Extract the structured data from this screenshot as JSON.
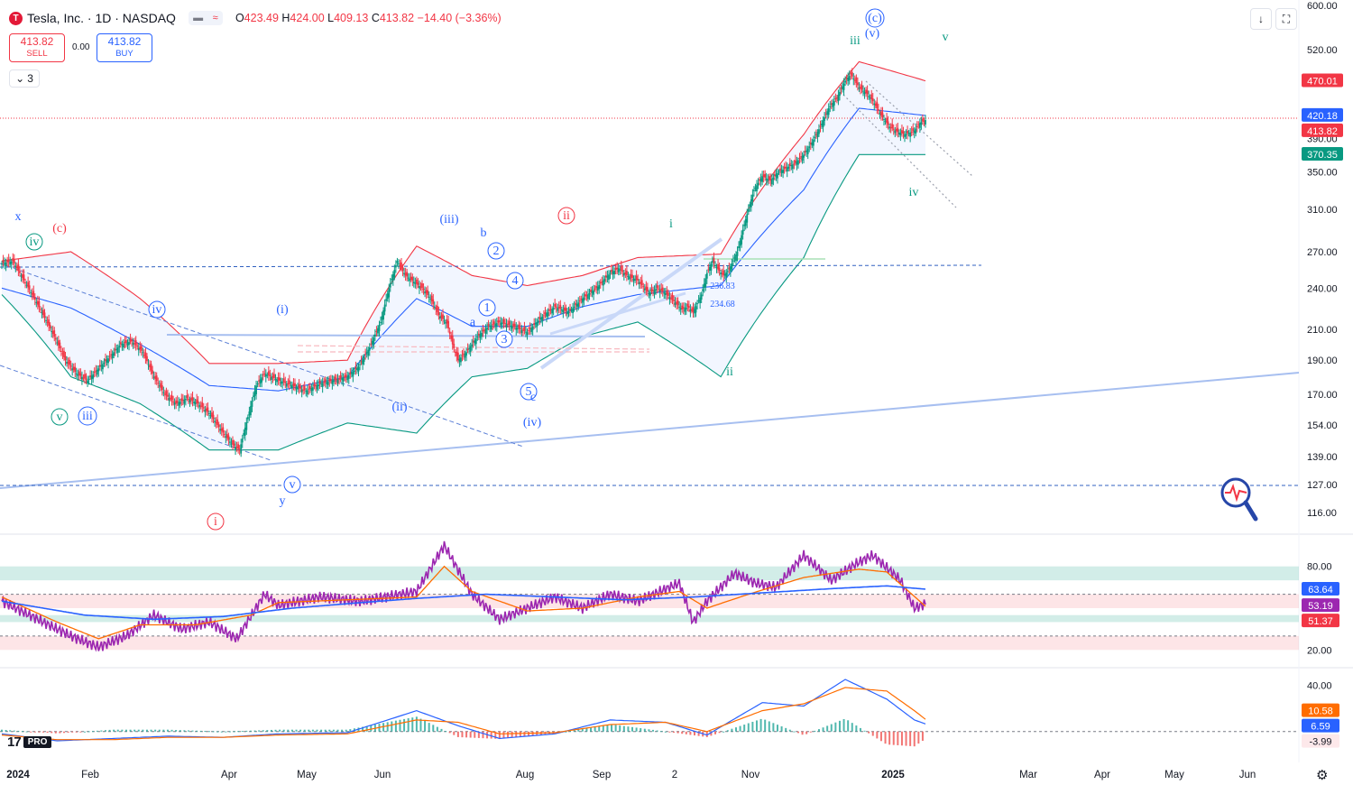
{
  "header": {
    "logo_glyph": "T",
    "symbol": "Tesla, Inc. · 1D · NASDAQ",
    "chip_a": "▬",
    "chip_b": "≈",
    "o_label": "O",
    "o_value": "423.49",
    "h_label": "H",
    "h_value": "424.00",
    "l_label": "L",
    "l_value": "409.13",
    "c_label": "C",
    "c_value": "413.82",
    "change": "−14.40 (−3.36%)"
  },
  "trade": {
    "sell_price": "413.82",
    "sell_label": "SELL",
    "spread": "0.00",
    "buy_price": "413.82",
    "buy_label": "BUY"
  },
  "indicators_toggle": {
    "icon": "chevron-down-icon",
    "count": "3"
  },
  "toolbar": {
    "download_icon": "↓",
    "fullscreen_icon": "⛶"
  },
  "branding": {
    "mark": "17",
    "pro": "PRO"
  },
  "settings_icon": "⚙",
  "colors": {
    "up": "#089981",
    "down": "#f23645",
    "accent": "#2962ff",
    "bb_upper": "#f23645",
    "bb_mid": "#2962ff",
    "bb_lower": "#089981",
    "rsi": "#9c27b0",
    "macd": "#2962ff",
    "signal": "#ff6d00"
  },
  "chart_data": {
    "type": "candlestick",
    "title": "Tesla, Inc. · 1D · NASDAQ",
    "price_axis_ticks": [
      "600.00",
      "520.00",
      "390.00",
      "350.00",
      "310.00",
      "270.00",
      "240.00",
      "210.00",
      "190.00",
      "170.00",
      "154.00",
      "139.00",
      "127.00",
      "116.00"
    ],
    "price_scale": "log",
    "time_axis_labels": [
      "2024",
      "Feb",
      "Apr",
      "May",
      "Jun",
      "Aug",
      "Sep",
      "2",
      "Nov",
      "2025",
      "Mar",
      "Apr",
      "May",
      "Jun"
    ],
    "price_path": [
      [
        0,
        260
      ],
      [
        8,
        262
      ],
      [
        14,
        250
      ],
      [
        22,
        235
      ],
      [
        30,
        220
      ],
      [
        38,
        205
      ],
      [
        46,
        190
      ],
      [
        54,
        182
      ],
      [
        62,
        178
      ],
      [
        70,
        185
      ],
      [
        78,
        192
      ],
      [
        86,
        200
      ],
      [
        94,
        202
      ],
      [
        102,
        195
      ],
      [
        110,
        180
      ],
      [
        118,
        170
      ],
      [
        126,
        165
      ],
      [
        134,
        168
      ],
      [
        142,
        165
      ],
      [
        150,
        160
      ],
      [
        158,
        152
      ],
      [
        166,
        145
      ],
      [
        172,
        142
      ],
      [
        178,
        158
      ],
      [
        184,
        175
      ],
      [
        190,
        182
      ],
      [
        200,
        178
      ],
      [
        210,
        175
      ],
      [
        220,
        172
      ],
      [
        230,
        176
      ],
      [
        240,
        178
      ],
      [
        250,
        180
      ],
      [
        258,
        186
      ],
      [
        266,
        198
      ],
      [
        274,
        215
      ],
      [
        280,
        240
      ],
      [
        286,
        262
      ],
      [
        292,
        250
      ],
      [
        298,
        245
      ],
      [
        304,
        240
      ],
      [
        310,
        232
      ],
      [
        316,
        220
      ],
      [
        322,
        214
      ],
      [
        326,
        200
      ],
      [
        330,
        190
      ],
      [
        336,
        195
      ],
      [
        344,
        205
      ],
      [
        352,
        212
      ],
      [
        360,
        215
      ],
      [
        370,
        212
      ],
      [
        380,
        208
      ],
      [
        390,
        218
      ],
      [
        400,
        226
      ],
      [
        410,
        222
      ],
      [
        420,
        232
      ],
      [
        430,
        240
      ],
      [
        440,
        252
      ],
      [
        446,
        256
      ],
      [
        452,
        250
      ],
      [
        460,
        246
      ],
      [
        468,
        236
      ],
      [
        474,
        240
      ],
      [
        480,
        236
      ],
      [
        486,
        230
      ],
      [
        492,
        224
      ],
      [
        496,
        226
      ],
      [
        500,
        222
      ],
      [
        506,
        235
      ],
      [
        510,
        252
      ],
      [
        514,
        262
      ],
      [
        518,
        255
      ],
      [
        522,
        250
      ],
      [
        526,
        255
      ],
      [
        532,
        270
      ],
      [
        538,
        300
      ],
      [
        544,
        330
      ],
      [
        550,
        345
      ],
      [
        556,
        340
      ],
      [
        562,
        350
      ],
      [
        568,
        355
      ],
      [
        574,
        360
      ],
      [
        580,
        370
      ],
      [
        586,
        385
      ],
      [
        592,
        405
      ],
      [
        598,
        430
      ],
      [
        604,
        445
      ],
      [
        610,
        470
      ],
      [
        614,
        480
      ],
      [
        620,
        460
      ],
      [
        626,
        450
      ],
      [
        630,
        440
      ],
      [
        636,
        420
      ],
      [
        642,
        405
      ],
      [
        648,
        398
      ],
      [
        654,
        395
      ],
      [
        660,
        400
      ],
      [
        664,
        410
      ],
      [
        668,
        413.82
      ]
    ],
    "bollinger": {
      "upper": [
        [
          0,
          262
        ],
        [
          50,
          270
        ],
        [
          100,
          232
        ],
        [
          150,
          188
        ],
        [
          200,
          188
        ],
        [
          250,
          190
        ],
        [
          300,
          275
        ],
        [
          340,
          250
        ],
        [
          380,
          242
        ],
        [
          420,
          250
        ],
        [
          460,
          265
        ],
        [
          520,
          268
        ],
        [
          580,
          395
        ],
        [
          620,
          500
        ],
        [
          668,
          470
        ]
      ],
      "mid": [
        [
          0,
          240
        ],
        [
          50,
          225
        ],
        [
          100,
          200
        ],
        [
          150,
          175
        ],
        [
          200,
          172
        ],
        [
          250,
          180
        ],
        [
          300,
          232
        ],
        [
          340,
          212
        ],
        [
          380,
          212
        ],
        [
          420,
          226
        ],
        [
          460,
          235
        ],
        [
          520,
          242
        ],
        [
          580,
          330
        ],
        [
          620,
          430
        ],
        [
          668,
          420
        ]
      ],
      "lower": [
        [
          0,
          235
        ],
        [
          50,
          180
        ],
        [
          100,
          165
        ],
        [
          150,
          142
        ],
        [
          200,
          142
        ],
        [
          250,
          155
        ],
        [
          300,
          150
        ],
        [
          340,
          180
        ],
        [
          380,
          185
        ],
        [
          420,
          205
        ],
        [
          460,
          215
        ],
        [
          520,
          180
        ],
        [
          580,
          265
        ],
        [
          620,
          370
        ],
        [
          668,
          370
        ]
      ]
    },
    "rsi": {
      "ticks": [
        "80.00",
        "20.00"
      ],
      "overbought_zone": [
        70,
        80
      ],
      "oversold_zone": [
        20,
        30
      ],
      "rsi_path": [
        [
          0,
          55
        ],
        [
          20,
          45
        ],
        [
          50,
          30
        ],
        [
          70,
          22
        ],
        [
          90,
          30
        ],
        [
          110,
          45
        ],
        [
          130,
          35
        ],
        [
          150,
          40
        ],
        [
          170,
          28
        ],
        [
          190,
          60
        ],
        [
          200,
          52
        ],
        [
          230,
          58
        ],
        [
          260,
          55
        ],
        [
          300,
          62
        ],
        [
          320,
          95
        ],
        [
          340,
          60
        ],
        [
          360,
          42
        ],
        [
          380,
          50
        ],
        [
          400,
          58
        ],
        [
          420,
          50
        ],
        [
          440,
          60
        ],
        [
          460,
          55
        ],
        [
          490,
          68
        ],
        [
          500,
          40
        ],
        [
          510,
          55
        ],
        [
          530,
          75
        ],
        [
          545,
          68
        ],
        [
          560,
          65
        ],
        [
          580,
          88
        ],
        [
          600,
          70
        ],
        [
          618,
          82
        ],
        [
          630,
          88
        ],
        [
          650,
          70
        ],
        [
          660,
          50
        ],
        [
          668,
          53.19
        ]
      ],
      "signal_path": [
        [
          0,
          58
        ],
        [
          40,
          40
        ],
        [
          70,
          28
        ],
        [
          100,
          38
        ],
        [
          140,
          38
        ],
        [
          180,
          45
        ],
        [
          200,
          54
        ],
        [
          250,
          56
        ],
        [
          300,
          58
        ],
        [
          320,
          80
        ],
        [
          340,
          62
        ],
        [
          380,
          48
        ],
        [
          420,
          50
        ],
        [
          460,
          58
        ],
        [
          490,
          62
        ],
        [
          510,
          50
        ],
        [
          540,
          60
        ],
        [
          580,
          72
        ],
        [
          620,
          78
        ],
        [
          640,
          76
        ],
        [
          668,
          51.37
        ]
      ],
      "ma_path": [
        [
          0,
          55
        ],
        [
          60,
          45
        ],
        [
          110,
          42
        ],
        [
          160,
          44
        ],
        [
          210,
          50
        ],
        [
          260,
          54
        ],
        [
          300,
          57
        ],
        [
          350,
          60
        ],
        [
          400,
          58
        ],
        [
          450,
          56
        ],
        [
          500,
          58
        ],
        [
          550,
          61
        ],
        [
          600,
          64
        ],
        [
          640,
          66
        ],
        [
          668,
          63.64
        ]
      ]
    },
    "macd": {
      "ticks": [
        "40.00",
        "-3.99"
      ],
      "macd_path": [
        [
          0,
          -2
        ],
        [
          40,
          -8
        ],
        [
          80,
          -6
        ],
        [
          120,
          -4
        ],
        [
          160,
          -5
        ],
        [
          200,
          -2
        ],
        [
          250,
          -1
        ],
        [
          300,
          18
        ],
        [
          330,
          5
        ],
        [
          360,
          -6
        ],
        [
          400,
          -2
        ],
        [
          440,
          10
        ],
        [
          480,
          8
        ],
        [
          510,
          -3
        ],
        [
          550,
          25
        ],
        [
          580,
          22
        ],
        [
          610,
          45
        ],
        [
          640,
          28
        ],
        [
          660,
          10
        ],
        [
          668,
          6.59
        ]
      ],
      "signal_path": [
        [
          0,
          -3
        ],
        [
          40,
          -7
        ],
        [
          80,
          -7
        ],
        [
          120,
          -5
        ],
        [
          160,
          -5
        ],
        [
          200,
          -3
        ],
        [
          250,
          -2
        ],
        [
          300,
          10
        ],
        [
          330,
          8
        ],
        [
          360,
          -2
        ],
        [
          400,
          -1
        ],
        [
          440,
          6
        ],
        [
          480,
          8
        ],
        [
          510,
          0
        ],
        [
          550,
          18
        ],
        [
          580,
          24
        ],
        [
          610,
          38
        ],
        [
          640,
          35
        ],
        [
          660,
          18
        ],
        [
          668,
          10.58
        ]
      ]
    },
    "price_labels": [
      {
        "text": "470.01",
        "color": "#f23645"
      },
      {
        "text": "420.18",
        "color": "#2962ff"
      },
      {
        "text": "413.82",
        "color": "#f23645"
      },
      {
        "text": "370.35",
        "color": "#089981"
      }
    ],
    "rsi_labels": [
      {
        "text": "63.64",
        "color": "#2962ff"
      },
      {
        "text": "53.19",
        "color": "#9c27b0"
      },
      {
        "text": "51.37",
        "color": "#f23645"
      }
    ],
    "macd_labels": [
      {
        "text": "10.58",
        "color": "#ff6d00"
      },
      {
        "text": "6.59",
        "color": "#2962ff"
      },
      {
        "text": "-3.99",
        "color": "#f23645"
      }
    ],
    "wave_labels": [
      {
        "text": "x",
        "color": "#2962ff",
        "circle": false
      },
      {
        "text": "(c)",
        "color": "#f23645",
        "circle": false
      },
      {
        "text": "iv",
        "color": "#089981",
        "circle": true
      },
      {
        "text": "iv",
        "color": "#2962ff",
        "circle": true
      },
      {
        "text": "(i)",
        "color": "#2962ff",
        "circle": false
      },
      {
        "text": "v",
        "color": "#089981",
        "circle": true
      },
      {
        "text": "iii",
        "color": "#2962ff",
        "circle": true
      },
      {
        "text": "v",
        "color": "#2962ff",
        "circle": true
      },
      {
        "text": "y",
        "color": "#2962ff",
        "circle": false
      },
      {
        "text": "i",
        "color": "#f23645",
        "circle": true
      },
      {
        "text": "(ii)",
        "color": "#2962ff",
        "circle": false
      },
      {
        "text": "(iii)",
        "color": "#2962ff",
        "circle": false
      },
      {
        "text": "b",
        "color": "#2962ff",
        "circle": false
      },
      {
        "text": "2",
        "color": "#2962ff",
        "circle": true
      },
      {
        "text": "4",
        "color": "#2962ff",
        "circle": true
      },
      {
        "text": "1",
        "color": "#2962ff",
        "circle": true
      },
      {
        "text": "a",
        "color": "#2962ff",
        "circle": false
      },
      {
        "text": "3",
        "color": "#2962ff",
        "circle": true
      },
      {
        "text": "5",
        "color": "#2962ff",
        "circle": true
      },
      {
        "text": "c",
        "color": "#2962ff",
        "circle": false
      },
      {
        "text": "(iv)",
        "color": "#2962ff",
        "circle": false
      },
      {
        "text": "ii",
        "color": "#f23645",
        "circle": true
      },
      {
        "text": "i",
        "color": "#089981",
        "circle": false
      },
      {
        "text": "ii",
        "color": "#089981",
        "circle": false
      },
      {
        "text": "236.83",
        "color": "#2962ff",
        "circle": false
      },
      {
        "text": "234.68",
        "color": "#2962ff",
        "circle": false
      },
      {
        "text": "iii",
        "color": "#089981",
        "circle": false
      },
      {
        "text": "(c)",
        "color": "#2962ff",
        "circle": true
      },
      {
        "text": "(v)",
        "color": "#2962ff",
        "circle": false
      },
      {
        "text": "v",
        "color": "#089981",
        "circle": false
      },
      {
        "text": "iv",
        "color": "#089981",
        "circle": false
      }
    ]
  }
}
